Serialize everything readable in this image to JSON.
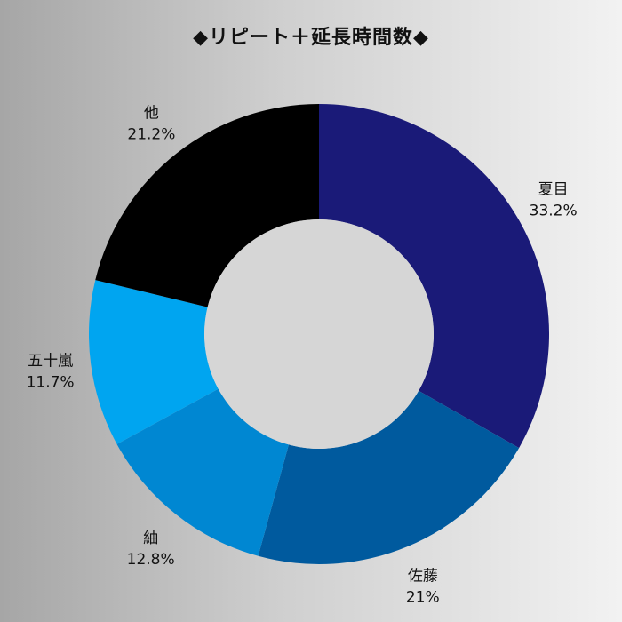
{
  "chart_data": {
    "type": "pie",
    "title": "◆リピート＋延長時間数◆",
    "categories": [
      "夏目",
      "佐藤",
      "紬",
      "五十嵐",
      "他"
    ],
    "values": [
      33.2,
      21.0,
      12.8,
      11.7,
      21.2
    ],
    "value_labels": [
      "33.2%",
      "21%",
      "12.8%",
      "11.7%",
      "21.2%"
    ],
    "colors": [
      "#1a1a78",
      "#005a9e",
      "#0087d2",
      "#00a5f0",
      "#000000"
    ],
    "donut_hole_color": "#d6d6d6",
    "start_angle": "12 o'clock",
    "direction": "clockwise",
    "legend": "none (labels outside slices)"
  }
}
